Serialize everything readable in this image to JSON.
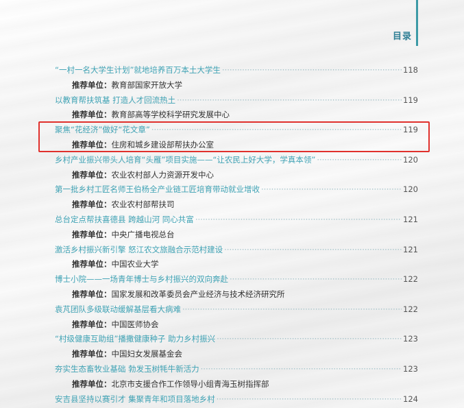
{
  "header": {
    "title": "目录"
  },
  "recommend_label": "推荐单位：",
  "entries": [
    {
      "title": "“一村一名大学生计划”就地培养百万本土大学生",
      "page": "118",
      "org": "教育部国家开放大学"
    },
    {
      "title": "以教育帮扶筑基 打造人才回流热土",
      "page": "119",
      "org": "教育部高等学校科学研究发展中心"
    },
    {
      "title": "聚焦“花经济”做好“花文章”",
      "page": "119",
      "org": "住房和城乡建设部帮扶办公室",
      "highlighted": true
    },
    {
      "title": "乡村产业振兴带头人培育“头雁”项目实施——“让农民上好大学，学真本领”",
      "page": "120",
      "org": "农业农村部人力资源开发中心"
    },
    {
      "title": "第一批乡村工匠名师王伯杨全产业链工匠培育带动就业增收",
      "page": "120",
      "org": "农业农村部帮扶司"
    },
    {
      "title": "总台定点帮扶喜德县 跨越山河 同心共富",
      "page": "121",
      "org": "中央广播电视总台"
    },
    {
      "title": "激活乡村振兴新引擎 怒江农文旅融合示范村建设",
      "page": "121",
      "org": "中国农业大学"
    },
    {
      "title": "博士小院——一场青年博士与乡村振兴的双向奔赴",
      "page": "122",
      "org": "国家发展和改革委员会产业经济与技术经济研究所"
    },
    {
      "title": "袁芃团队多级联动缓解基层看大病难",
      "page": "122",
      "org": "中国医师协会"
    },
    {
      "title": "“村级健康互助组”播撒健康种子 助力乡村振兴",
      "page": "123",
      "org": "中国妇女发展基金会"
    },
    {
      "title": "夯实生态畜牧业基础 勃发玉树牦牛新活力",
      "page": "123",
      "org": "北京市支援合作工作领导小组青海玉树指挥部"
    },
    {
      "title": "安吉县坚持以赛引才 集聚青年和项目落地乡村",
      "page": "124"
    }
  ],
  "colors": {
    "title": "#3fa2b4",
    "accent_line": "#3c9aa6",
    "highlight_box": "#e0302c"
  }
}
